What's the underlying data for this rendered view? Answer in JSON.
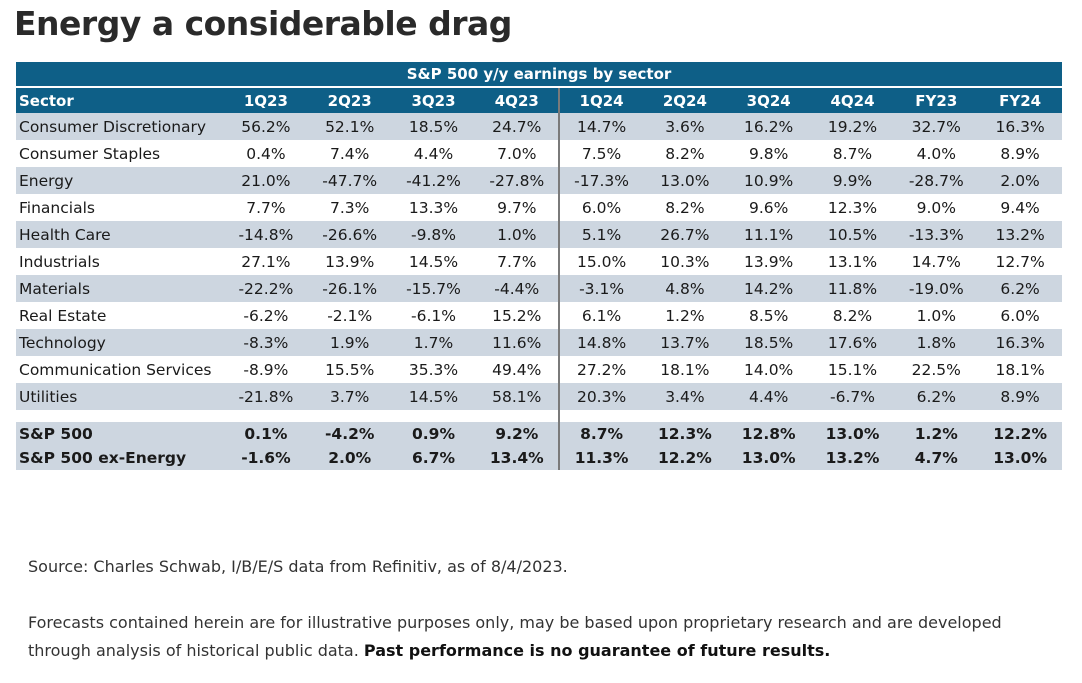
{
  "title": "Energy a considerable drag",
  "table": {
    "caption": "S&P 500 y/y earnings by sector",
    "headers": [
      "Sector",
      "1Q23",
      "2Q23",
      "3Q23",
      "4Q23",
      "1Q24",
      "2Q24",
      "3Q24",
      "4Q24",
      "FY23",
      "FY24"
    ],
    "rows": [
      [
        "Consumer Discretionary",
        "56.2%",
        "52.1%",
        "18.5%",
        "24.7%",
        "14.7%",
        "3.6%",
        "16.2%",
        "19.2%",
        "32.7%",
        "16.3%"
      ],
      [
        "Consumer Staples",
        "0.4%",
        "7.4%",
        "4.4%",
        "7.0%",
        "7.5%",
        "8.2%",
        "9.8%",
        "8.7%",
        "4.0%",
        "8.9%"
      ],
      [
        "Energy",
        "21.0%",
        "-47.7%",
        "-41.2%",
        "-27.8%",
        "-17.3%",
        "13.0%",
        "10.9%",
        "9.9%",
        "-28.7%",
        "2.0%"
      ],
      [
        "Financials",
        "7.7%",
        "7.3%",
        "13.3%",
        "9.7%",
        "6.0%",
        "8.2%",
        "9.6%",
        "12.3%",
        "9.0%",
        "9.4%"
      ],
      [
        "Health Care",
        "-14.8%",
        "-26.6%",
        "-9.8%",
        "1.0%",
        "5.1%",
        "26.7%",
        "11.1%",
        "10.5%",
        "-13.3%",
        "13.2%"
      ],
      [
        "Industrials",
        "27.1%",
        "13.9%",
        "14.5%",
        "7.7%",
        "15.0%",
        "10.3%",
        "13.9%",
        "13.1%",
        "14.7%",
        "12.7%"
      ],
      [
        "Materials",
        "-22.2%",
        "-26.1%",
        "-15.7%",
        "-4.4%",
        "-3.1%",
        "4.8%",
        "14.2%",
        "11.8%",
        "-19.0%",
        "6.2%"
      ],
      [
        "Real Estate",
        "-6.2%",
        "-2.1%",
        "-6.1%",
        "15.2%",
        "6.1%",
        "1.2%",
        "8.5%",
        "8.2%",
        "1.0%",
        "6.0%"
      ],
      [
        "Technology",
        "-8.3%",
        "1.9%",
        "1.7%",
        "11.6%",
        "14.8%",
        "13.7%",
        "18.5%",
        "17.6%",
        "1.8%",
        "16.3%"
      ],
      [
        "Communication Services",
        "-8.9%",
        "15.5%",
        "35.3%",
        "49.4%",
        "27.2%",
        "18.1%",
        "14.0%",
        "15.1%",
        "22.5%",
        "18.1%"
      ],
      [
        "Utilities",
        "-21.8%",
        "3.7%",
        "14.5%",
        "58.1%",
        "20.3%",
        "3.4%",
        "4.4%",
        "-6.7%",
        "6.2%",
        "8.9%"
      ]
    ],
    "totals": [
      [
        "S&P 500",
        "0.1%",
        "-4.2%",
        "0.9%",
        "9.2%",
        "8.7%",
        "12.3%",
        "12.8%",
        "13.0%",
        "1.2%",
        "12.2%"
      ],
      [
        "S&P 500 ex-Energy",
        "-1.6%",
        "2.0%",
        "6.7%",
        "13.4%",
        "11.3%",
        "12.2%",
        "13.0%",
        "13.2%",
        "4.7%",
        "13.0%"
      ]
    ]
  },
  "source": "Source: Charles Schwab, I/B/E/S data from Refinitiv, as of 8/4/2023.",
  "disclaimer": {
    "text": "Forecasts contained herein are for illustrative purposes only, may be based upon proprietary research and are developed through analysis of historical public data. ",
    "bold": "Past performance is no guarantee of future results."
  },
  "colors": {
    "header_bg": "#0e5f87",
    "band_bg": "#cdd6e0"
  }
}
